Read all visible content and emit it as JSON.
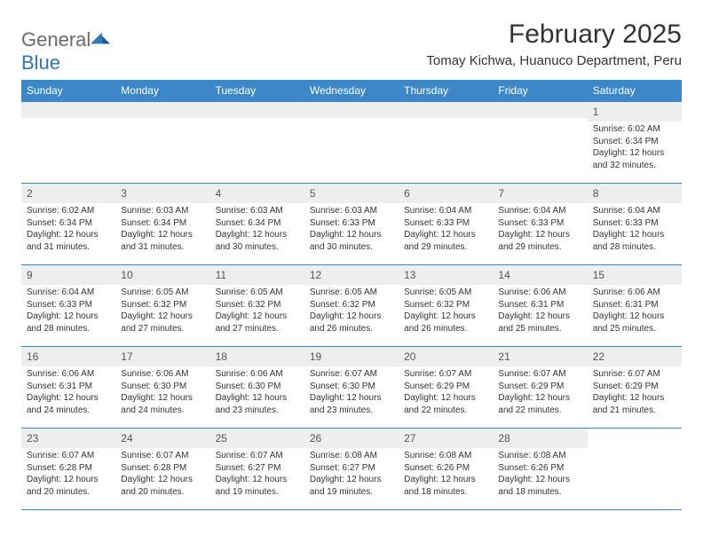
{
  "logo": {
    "word1": "General",
    "word2": "Blue"
  },
  "title": "February 2025",
  "subtitle": "Tomay Kichwa, Huanuco Department, Peru",
  "colors": {
    "headerBar": "#3b87c8",
    "headerText": "#ffffff",
    "dayShade": "#eeeeee",
    "border": "#3b87c8",
    "bodyText": "#333333",
    "logoGray": "#6a6a6a",
    "logoBlue": "#2f77b6",
    "background": "#ffffff"
  },
  "typography": {
    "title_fontsize": 30,
    "subtitle_fontsize": 15,
    "dayheader_fontsize": 12,
    "daynum_fontsize": 12,
    "detail_fontsize": 10
  },
  "dayHeaders": [
    "Sunday",
    "Monday",
    "Tuesday",
    "Wednesday",
    "Thursday",
    "Friday",
    "Saturday"
  ],
  "weeks": [
    [
      null,
      null,
      null,
      null,
      null,
      null,
      {
        "num": "1",
        "sunrise": "Sunrise: 6:02 AM",
        "sunset": "Sunset: 6:34 PM",
        "daylight": "Daylight: 12 hours and 32 minutes."
      }
    ],
    [
      {
        "num": "2",
        "sunrise": "Sunrise: 6:02 AM",
        "sunset": "Sunset: 6:34 PM",
        "daylight": "Daylight: 12 hours and 31 minutes."
      },
      {
        "num": "3",
        "sunrise": "Sunrise: 6:03 AM",
        "sunset": "Sunset: 6:34 PM",
        "daylight": "Daylight: 12 hours and 31 minutes."
      },
      {
        "num": "4",
        "sunrise": "Sunrise: 6:03 AM",
        "sunset": "Sunset: 6:34 PM",
        "daylight": "Daylight: 12 hours and 30 minutes."
      },
      {
        "num": "5",
        "sunrise": "Sunrise: 6:03 AM",
        "sunset": "Sunset: 6:33 PM",
        "daylight": "Daylight: 12 hours and 30 minutes."
      },
      {
        "num": "6",
        "sunrise": "Sunrise: 6:04 AM",
        "sunset": "Sunset: 6:33 PM",
        "daylight": "Daylight: 12 hours and 29 minutes."
      },
      {
        "num": "7",
        "sunrise": "Sunrise: 6:04 AM",
        "sunset": "Sunset: 6:33 PM",
        "daylight": "Daylight: 12 hours and 29 minutes."
      },
      {
        "num": "8",
        "sunrise": "Sunrise: 6:04 AM",
        "sunset": "Sunset: 6:33 PM",
        "daylight": "Daylight: 12 hours and 28 minutes."
      }
    ],
    [
      {
        "num": "9",
        "sunrise": "Sunrise: 6:04 AM",
        "sunset": "Sunset: 6:33 PM",
        "daylight": "Daylight: 12 hours and 28 minutes."
      },
      {
        "num": "10",
        "sunrise": "Sunrise: 6:05 AM",
        "sunset": "Sunset: 6:32 PM",
        "daylight": "Daylight: 12 hours and 27 minutes."
      },
      {
        "num": "11",
        "sunrise": "Sunrise: 6:05 AM",
        "sunset": "Sunset: 6:32 PM",
        "daylight": "Daylight: 12 hours and 27 minutes."
      },
      {
        "num": "12",
        "sunrise": "Sunrise: 6:05 AM",
        "sunset": "Sunset: 6:32 PM",
        "daylight": "Daylight: 12 hours and 26 minutes."
      },
      {
        "num": "13",
        "sunrise": "Sunrise: 6:05 AM",
        "sunset": "Sunset: 6:32 PM",
        "daylight": "Daylight: 12 hours and 26 minutes."
      },
      {
        "num": "14",
        "sunrise": "Sunrise: 6:06 AM",
        "sunset": "Sunset: 6:31 PM",
        "daylight": "Daylight: 12 hours and 25 minutes."
      },
      {
        "num": "15",
        "sunrise": "Sunrise: 6:06 AM",
        "sunset": "Sunset: 6:31 PM",
        "daylight": "Daylight: 12 hours and 25 minutes."
      }
    ],
    [
      {
        "num": "16",
        "sunrise": "Sunrise: 6:06 AM",
        "sunset": "Sunset: 6:31 PM",
        "daylight": "Daylight: 12 hours and 24 minutes."
      },
      {
        "num": "17",
        "sunrise": "Sunrise: 6:06 AM",
        "sunset": "Sunset: 6:30 PM",
        "daylight": "Daylight: 12 hours and 24 minutes."
      },
      {
        "num": "18",
        "sunrise": "Sunrise: 6:06 AM",
        "sunset": "Sunset: 6:30 PM",
        "daylight": "Daylight: 12 hours and 23 minutes."
      },
      {
        "num": "19",
        "sunrise": "Sunrise: 6:07 AM",
        "sunset": "Sunset: 6:30 PM",
        "daylight": "Daylight: 12 hours and 23 minutes."
      },
      {
        "num": "20",
        "sunrise": "Sunrise: 6:07 AM",
        "sunset": "Sunset: 6:29 PM",
        "daylight": "Daylight: 12 hours and 22 minutes."
      },
      {
        "num": "21",
        "sunrise": "Sunrise: 6:07 AM",
        "sunset": "Sunset: 6:29 PM",
        "daylight": "Daylight: 12 hours and 22 minutes."
      },
      {
        "num": "22",
        "sunrise": "Sunrise: 6:07 AM",
        "sunset": "Sunset: 6:29 PM",
        "daylight": "Daylight: 12 hours and 21 minutes."
      }
    ],
    [
      {
        "num": "23",
        "sunrise": "Sunrise: 6:07 AM",
        "sunset": "Sunset: 6:28 PM",
        "daylight": "Daylight: 12 hours and 20 minutes."
      },
      {
        "num": "24",
        "sunrise": "Sunrise: 6:07 AM",
        "sunset": "Sunset: 6:28 PM",
        "daylight": "Daylight: 12 hours and 20 minutes."
      },
      {
        "num": "25",
        "sunrise": "Sunrise: 6:07 AM",
        "sunset": "Sunset: 6:27 PM",
        "daylight": "Daylight: 12 hours and 19 minutes."
      },
      {
        "num": "26",
        "sunrise": "Sunrise: 6:08 AM",
        "sunset": "Sunset: 6:27 PM",
        "daylight": "Daylight: 12 hours and 19 minutes."
      },
      {
        "num": "27",
        "sunrise": "Sunrise: 6:08 AM",
        "sunset": "Sunset: 6:26 PM",
        "daylight": "Daylight: 12 hours and 18 minutes."
      },
      {
        "num": "28",
        "sunrise": "Sunrise: 6:08 AM",
        "sunset": "Sunset: 6:26 PM",
        "daylight": "Daylight: 12 hours and 18 minutes."
      },
      null
    ]
  ]
}
